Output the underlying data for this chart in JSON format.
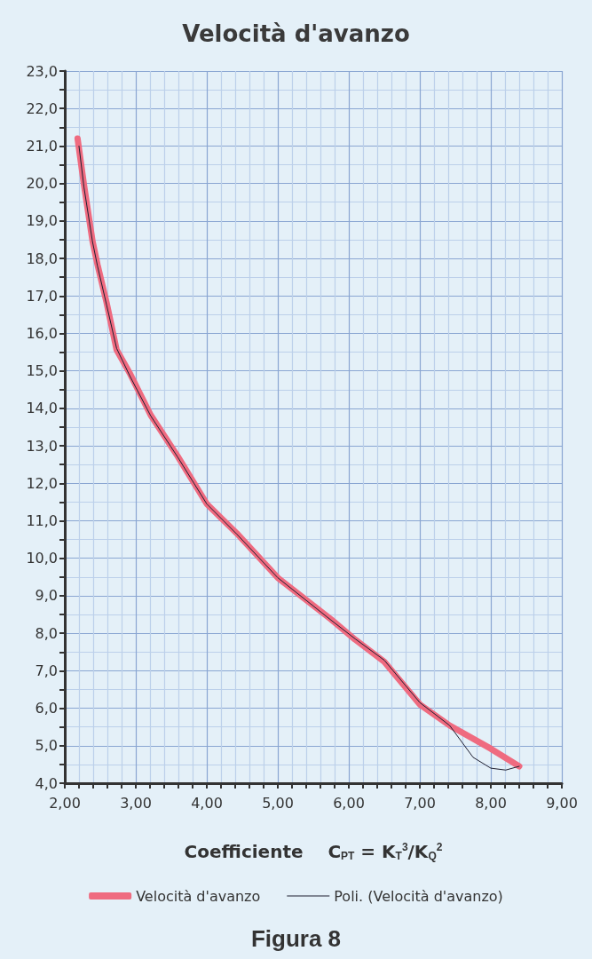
{
  "chart_data": {
    "type": "line",
    "title": "Velocità d'avanzo",
    "xlabel": "Coefficiente    C$_{PT}$ = K$_{T}$$^{3}$/K$_{Q}$$^{2}$",
    "annotations": [
      "Figura 8"
    ],
    "xlim": [
      2,
      9
    ],
    "ylim": [
      4,
      23
    ],
    "xticks": [
      {
        "value": 2,
        "label": "2,00"
      },
      {
        "value": 2.2,
        "label": null
      },
      {
        "value": 2.4,
        "label": null
      },
      {
        "value": 2.6,
        "label": null
      },
      {
        "value": 2.8,
        "label": null
      },
      {
        "value": 3,
        "label": "3,00"
      },
      {
        "value": 3.2,
        "label": null
      },
      {
        "value": 3.4,
        "label": null
      },
      {
        "value": 3.6,
        "label": null
      },
      {
        "value": 3.8,
        "label": null
      },
      {
        "value": 4,
        "label": "4,00"
      },
      {
        "value": 4.2,
        "label": null
      },
      {
        "value": 4.4,
        "label": null
      },
      {
        "value": 4.6,
        "label": null
      },
      {
        "value": 4.8,
        "label": null
      },
      {
        "value": 5,
        "label": "5,00"
      },
      {
        "value": 5.2,
        "label": null
      },
      {
        "value": 5.4,
        "label": null
      },
      {
        "value": 5.6,
        "label": null
      },
      {
        "value": 5.8,
        "label": null
      },
      {
        "value": 6,
        "label": "6,00"
      },
      {
        "value": 6.2,
        "label": null
      },
      {
        "value": 6.4,
        "label": null
      },
      {
        "value": 6.6,
        "label": null
      },
      {
        "value": 6.8,
        "label": null
      },
      {
        "value": 7,
        "label": "7,00"
      },
      {
        "value": 7.2,
        "label": null
      },
      {
        "value": 7.4,
        "label": null
      },
      {
        "value": 7.6,
        "label": null
      },
      {
        "value": 7.8,
        "label": null
      },
      {
        "value": 8,
        "label": "8,00"
      },
      {
        "value": 8.2,
        "label": null
      },
      {
        "value": 8.4,
        "label": null
      },
      {
        "value": 8.6,
        "label": null
      },
      {
        "value": 8.8,
        "label": null
      },
      {
        "value": 9,
        "label": "9,00"
      }
    ],
    "yticks": [
      {
        "value": 4,
        "label": "4,0"
      },
      {
        "value": 4.5,
        "label": null
      },
      {
        "value": 5,
        "label": "5,0"
      },
      {
        "value": 5.5,
        "label": null
      },
      {
        "value": 6,
        "label": "6,0"
      },
      {
        "value": 6.5,
        "label": null
      },
      {
        "value": 7,
        "label": "7,0"
      },
      {
        "value": 7.5,
        "label": null
      },
      {
        "value": 8,
        "label": "8,0"
      },
      {
        "value": 8.5,
        "label": null
      },
      {
        "value": 9,
        "label": "9,0"
      },
      {
        "value": 9.5,
        "label": null
      },
      {
        "value": 10,
        "label": "10,0"
      },
      {
        "value": 10.5,
        "label": null
      },
      {
        "value": 11,
        "label": "11,0"
      },
      {
        "value": 11.5,
        "label": null
      },
      {
        "value": 12,
        "label": "12,0"
      },
      {
        "value": 12.5,
        "label": null
      },
      {
        "value": 13,
        "label": "13,0"
      },
      {
        "value": 13.5,
        "label": null
      },
      {
        "value": 14,
        "label": "14,0"
      },
      {
        "value": 14.5,
        "label": null
      },
      {
        "value": 15,
        "label": "15,0"
      },
      {
        "value": 15.5,
        "label": null
      },
      {
        "value": 16,
        "label": "16,0"
      },
      {
        "value": 16.5,
        "label": null
      },
      {
        "value": 17,
        "label": "17,0"
      },
      {
        "value": 17.5,
        "label": null
      },
      {
        "value": 18,
        "label": "18,0"
      },
      {
        "value": 18.5,
        "label": null
      },
      {
        "value": 19,
        "label": "19,0"
      },
      {
        "value": 19.5,
        "label": null
      },
      {
        "value": 20,
        "label": "20,0"
      },
      {
        "value": 20.5,
        "label": null
      },
      {
        "value": 21,
        "label": "21,0"
      },
      {
        "value": 21.5,
        "label": null
      },
      {
        "value": 22,
        "label": "22,0"
      },
      {
        "value": 22.5,
        "label": null
      },
      {
        "value": 23,
        "label": "23,0"
      }
    ],
    "grid": true,
    "legend": "bottom",
    "marker": "none",
    "line_style": "solid",
    "series": [
      {
        "name": "Velocità d'avanzo",
        "color": "#ef6b80",
        "x": [
          2.18,
          2.27,
          2.39,
          2.46,
          2.59,
          2.73,
          2.92,
          3.21,
          3.59,
          4.0,
          4.42,
          5.0,
          5.75,
          6.09,
          6.5,
          7.0,
          7.42,
          8.0,
          8.4
        ],
        "values": [
          21.2,
          19.97,
          18.47,
          17.84,
          16.81,
          15.56,
          14.92,
          13.82,
          12.72,
          11.45,
          10.67,
          9.48,
          8.37,
          7.83,
          7.24,
          6.1,
          5.54,
          4.92,
          4.45
        ]
      },
      {
        "name": "Poli. (Velocità d'avanzo)",
        "color": "#1e1e30",
        "x": [
          2.2,
          2.27,
          2.39,
          2.46,
          2.59,
          2.73,
          2.92,
          3.21,
          3.59,
          4.0,
          4.42,
          5.0,
          5.75,
          6.09,
          6.5,
          7.0,
          7.42,
          7.75,
          8.0,
          8.21,
          8.4
        ],
        "values": [
          21.0,
          19.9,
          18.45,
          17.8,
          16.75,
          15.6,
          14.85,
          13.8,
          12.7,
          11.45,
          10.65,
          9.48,
          8.35,
          7.85,
          7.28,
          6.15,
          5.54,
          4.69,
          4.4,
          4.35,
          4.45
        ]
      }
    ]
  }
}
